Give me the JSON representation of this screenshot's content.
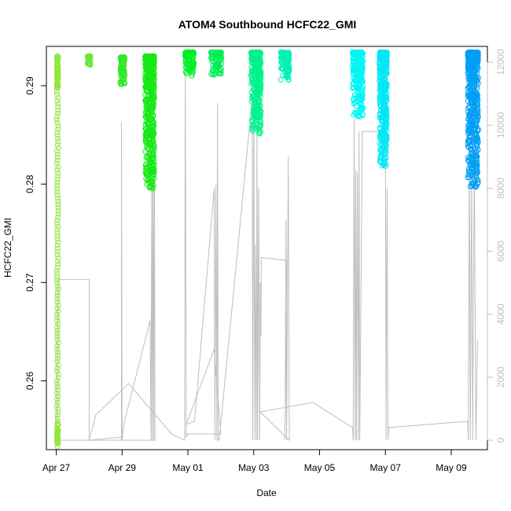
{
  "chart_data": {
    "type": "scatter",
    "title": "ATOM4 Southbound HCFC22_GMI",
    "xlabel": "Date",
    "ylabel": "HCFC22_GMI",
    "x_ticks": [
      "Apr 27",
      "Apr 29",
      "May 01",
      "May 03",
      "May 05",
      "May 07",
      "May 09"
    ],
    "x_tick_days": [
      0,
      2,
      4,
      6,
      8,
      10,
      12
    ],
    "xlim_days": [
      -0.3,
      13.1
    ],
    "y_ticks": [
      "0.26",
      "0.27",
      "0.28",
      "0.29"
    ],
    "y_tick_values": [
      0.26,
      0.27,
      0.28,
      0.29
    ],
    "ylim": [
      0.253,
      0.294
    ],
    "y2_ticks": [
      "0",
      "2000",
      "4000",
      "6000",
      "8000",
      "10000",
      "12000"
    ],
    "y2_tick_values": [
      0,
      2000,
      4000,
      6000,
      8000,
      10000,
      12000
    ],
    "y2lim": [
      -300,
      12500
    ],
    "y2_color": "#bfbfbf",
    "altitude_color": "#bebebe",
    "grid": false,
    "flights": [
      {
        "x": [
          0.02,
          0.06
        ],
        "ymin": 0.2533,
        "ymax": 0.293,
        "color": "#8fe63a",
        "dense": true
      },
      {
        "x": [
          0.95,
          1.05
        ],
        "ymin": 0.2921,
        "ymax": 0.293,
        "color": "#66e83a"
      },
      {
        "x": [
          1.95,
          2.08
        ],
        "ymin": 0.2901,
        "ymax": 0.2929,
        "color": "#33e82a"
      },
      {
        "x": [
          2.7,
          2.98
        ],
        "ymin": 0.2793,
        "ymax": 0.293,
        "color": "#17e817"
      },
      {
        "x": [
          3.92,
          4.18
        ],
        "ymin": 0.291,
        "ymax": 0.2934,
        "color": "#00ee26"
      },
      {
        "x": [
          4.7,
          5.02
        ],
        "ymin": 0.2911,
        "ymax": 0.2934,
        "color": "#00ee55"
      },
      {
        "x": [
          5.92,
          6.22
        ],
        "ymin": 0.285,
        "ymax": 0.2934,
        "color": "#00f28c"
      },
      {
        "x": [
          6.82,
          7.08
        ],
        "ymin": 0.2905,
        "ymax": 0.2934,
        "color": "#00f2b4"
      },
      {
        "x": [
          9.0,
          9.32
        ],
        "ymin": 0.2868,
        "ymax": 0.2934,
        "color": "#00f5f5"
      },
      {
        "x": [
          9.82,
          10.05
        ],
        "ymin": 0.2818,
        "ymax": 0.2934,
        "color": "#00e8f5"
      },
      {
        "x": [
          12.5,
          12.82
        ],
        "ymin": 0.2797,
        "ymax": 0.2934,
        "color": "#009ef5"
      }
    ],
    "altitude_track": [
      [
        0.0,
        100
      ],
      [
        0.02,
        600
      ],
      [
        0.05,
        5100
      ],
      [
        1.0,
        5100
      ],
      [
        1.0,
        0
      ],
      [
        0.05,
        0
      ],
      [
        1.98,
        0
      ],
      [
        1.98,
        10100
      ],
      [
        2.0,
        0
      ],
      [
        2.05,
        500
      ],
      [
        2.85,
        3800
      ],
      [
        2.88,
        0
      ],
      [
        2.9,
        8300
      ],
      [
        2.92,
        0
      ],
      [
        2.94,
        8500
      ],
      [
        2.96,
        0
      ],
      [
        2.98,
        9800
      ],
      [
        3.0,
        0
      ],
      [
        2.0,
        0
      ],
      [
        1.98,
        100
      ],
      [
        1.0,
        0
      ],
      [
        1.2,
        800
      ],
      [
        2.2,
        1800
      ],
      [
        3.5,
        200
      ],
      [
        3.9,
        0
      ],
      [
        3.92,
        12000
      ],
      [
        3.95,
        100
      ],
      [
        4.0,
        200
      ],
      [
        5.0,
        200
      ],
      [
        4.8,
        2900
      ],
      [
        3.95,
        500
      ],
      [
        4.2,
        600
      ],
      [
        4.8,
        8000
      ],
      [
        4.82,
        0
      ],
      [
        4.85,
        8100
      ],
      [
        4.88,
        0
      ],
      [
        4.9,
        10700
      ],
      [
        4.92,
        0
      ],
      [
        4.95,
        0
      ],
      [
        5.95,
        10800
      ],
      [
        5.97,
        0
      ],
      [
        6.0,
        11200
      ],
      [
        6.03,
        0
      ],
      [
        6.05,
        6200
      ],
      [
        6.08,
        0
      ],
      [
        6.1,
        10000
      ],
      [
        6.12,
        0
      ],
      [
        6.15,
        8000
      ],
      [
        6.18,
        0
      ],
      [
        6.2,
        5000
      ],
      [
        6.22,
        3300
      ],
      [
        6.23,
        5800
      ],
      [
        7.0,
        5700
      ],
      [
        6.95,
        0
      ],
      [
        6.98,
        7000
      ],
      [
        7.0,
        0
      ],
      [
        7.05,
        9000
      ],
      [
        7.08,
        0
      ],
      [
        6.2,
        900
      ],
      [
        7.8,
        1200
      ],
      [
        9.0,
        400
      ],
      [
        9.02,
        0
      ],
      [
        9.05,
        10200
      ],
      [
        9.08,
        0
      ],
      [
        9.1,
        8600
      ],
      [
        9.12,
        0
      ],
      [
        9.15,
        8500
      ],
      [
        9.18,
        0
      ],
      [
        9.2,
        9800
      ],
      [
        9.22,
        0
      ],
      [
        9.3,
        9800
      ],
      [
        10.0,
        9800
      ],
      [
        10.02,
        0
      ],
      [
        10.05,
        8000
      ],
      [
        10.08,
        0
      ],
      [
        10.1,
        400
      ],
      [
        12.5,
        600
      ],
      [
        12.52,
        0
      ],
      [
        12.55,
        9200
      ],
      [
        12.58,
        0
      ],
      [
        12.62,
        8500
      ],
      [
        12.65,
        0
      ],
      [
        12.7,
        9000
      ],
      [
        12.75,
        0
      ],
      [
        12.8,
        3200
      ]
    ]
  }
}
